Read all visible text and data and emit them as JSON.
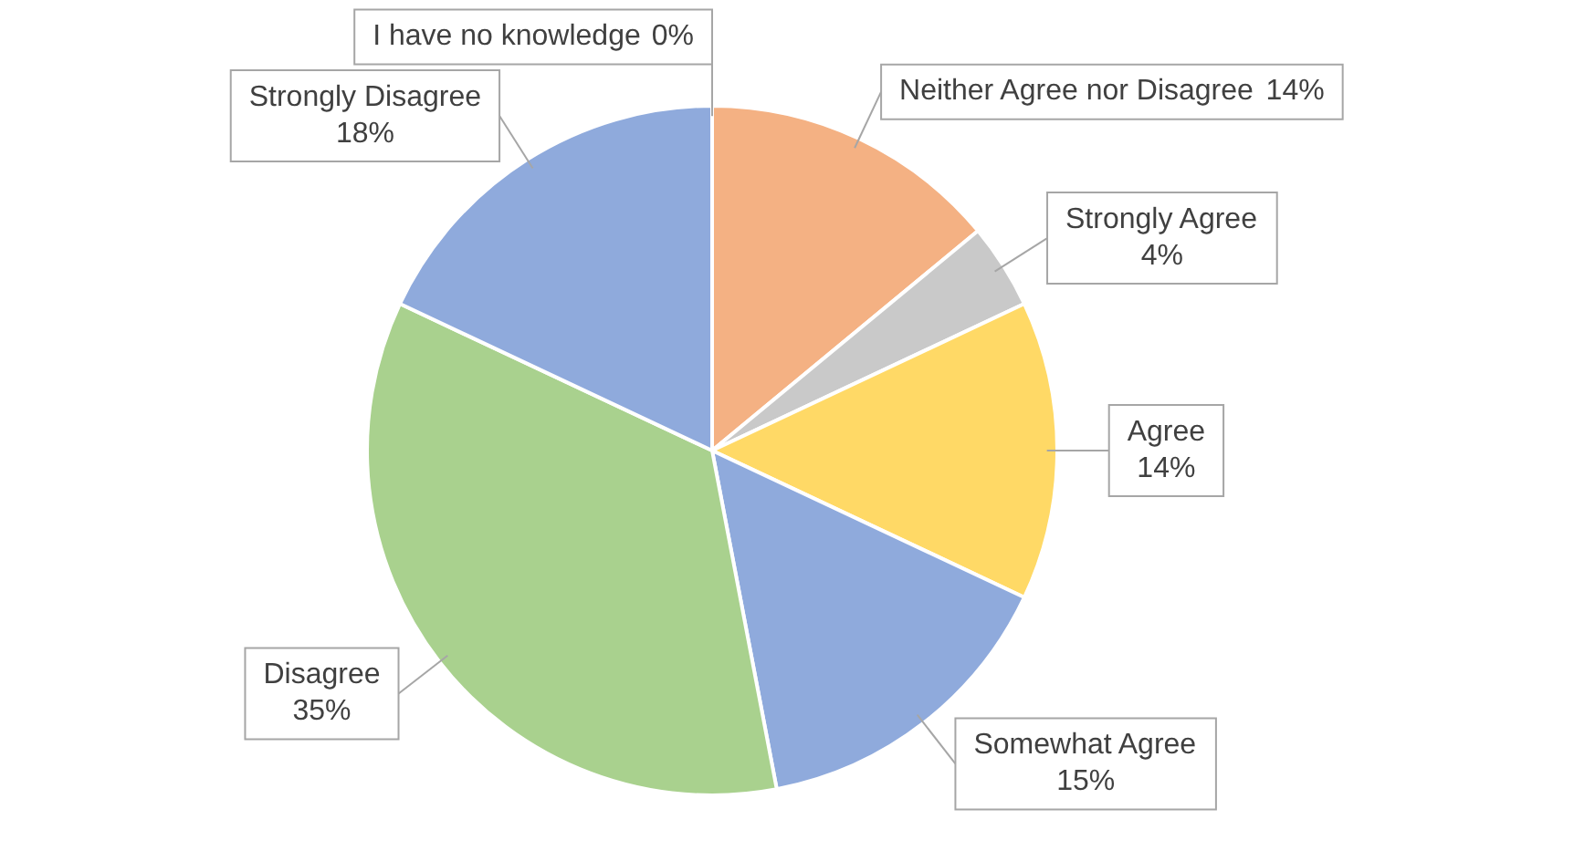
{
  "chart_data": {
    "type": "pie",
    "categories": [
      "Neither Agree nor Disagree",
      "Strongly Agree",
      "Agree",
      "Somewhat Agree",
      "Disagree",
      "Strongly Disagree",
      "I have no knowledge"
    ],
    "values": [
      14,
      4,
      14,
      15,
      35,
      18,
      0
    ],
    "colors": [
      "#f4b183",
      "#c9c9c9",
      "#ffd966",
      "#8faadc",
      "#a9d18e",
      "#8faadc",
      "#9dc3e6"
    ],
    "value_labels": [
      "14%",
      "4%",
      "14%",
      "15%",
      "35%",
      "18%",
      "0%"
    ],
    "legend": false
  }
}
